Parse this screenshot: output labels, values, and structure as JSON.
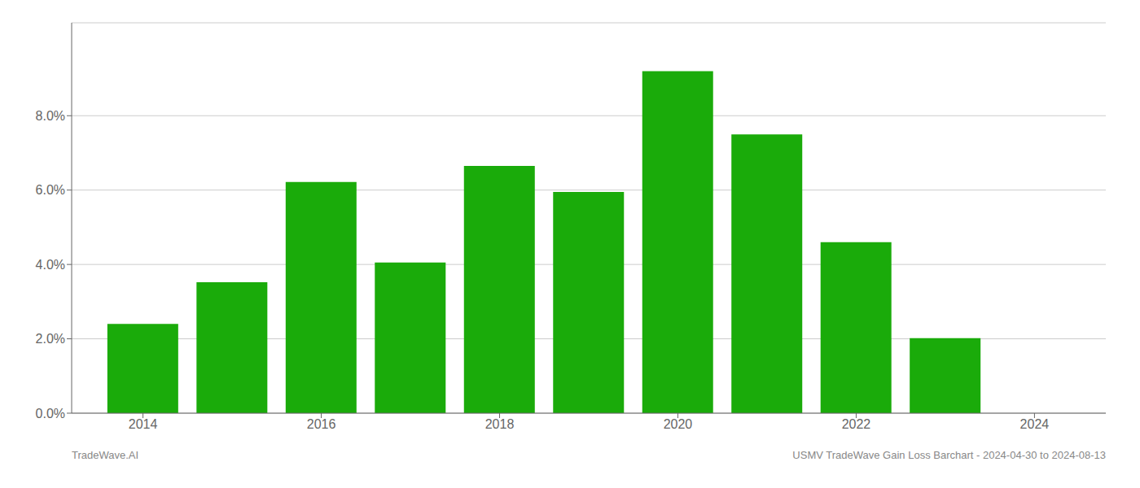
{
  "chart_data": {
    "type": "bar",
    "x": [
      2014,
      2015,
      2016,
      2017,
      2018,
      2019,
      2020,
      2021,
      2022,
      2023
    ],
    "values": [
      0.024,
      0.0352,
      0.0622,
      0.0405,
      0.0665,
      0.0595,
      0.092,
      0.075,
      0.046,
      0.0202
    ],
    "color": "#1aab0a",
    "xlim": [
      2013.2,
      2024.8
    ],
    "xticks": [
      2014,
      2016,
      2018,
      2020,
      2022,
      2024
    ],
    "ylim": [
      0,
      0.105
    ],
    "yticks": [
      {
        "value": 0.0,
        "label": "0.0%"
      },
      {
        "value": 0.02,
        "label": "2.0%"
      },
      {
        "value": 0.04,
        "label": "4.0%"
      },
      {
        "value": 0.06,
        "label": "6.0%"
      },
      {
        "value": 0.08,
        "label": "8.0%"
      }
    ],
    "grid": true,
    "annotations": [
      "TradeWave.AI",
      "USMV TradeWave Gain Loss Barchart - 2024-04-30 to 2024-08-13"
    ]
  }
}
